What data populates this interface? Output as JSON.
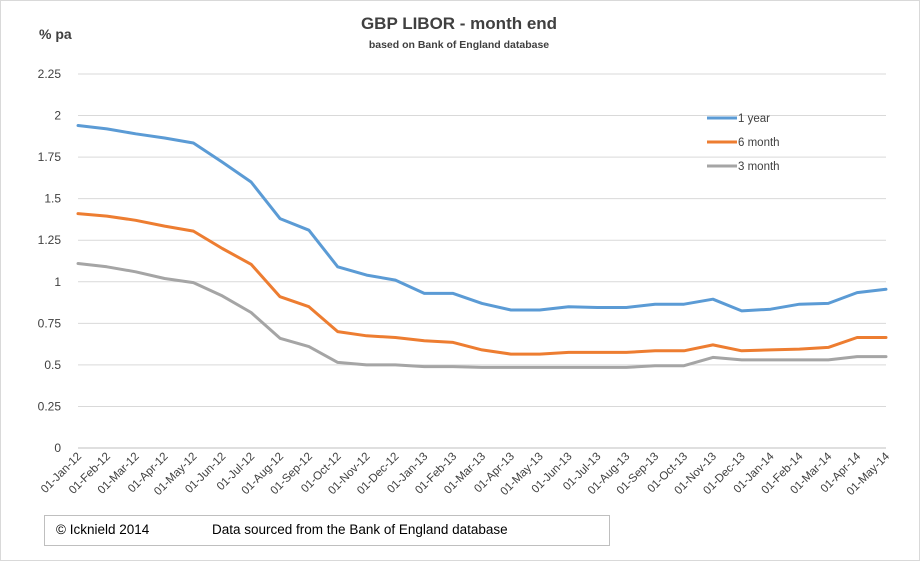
{
  "chart_data": {
    "type": "line",
    "title": "GBP LIBOR - month end",
    "subtitle": "based on Bank of England database",
    "ylabel": "% pa",
    "xlabel": "",
    "ylim": [
      0,
      2.25
    ],
    "yticks": [
      {
        "value": 0,
        "label": "0"
      },
      {
        "value": 0.25,
        "label": "0.25"
      },
      {
        "value": 0.5,
        "label": "0.5"
      },
      {
        "value": 0.75,
        "label": "0.75"
      },
      {
        "value": 1,
        "label": "1"
      },
      {
        "value": 1.25,
        "label": "1.25"
      },
      {
        "value": 1.5,
        "label": "1.5"
      },
      {
        "value": 1.75,
        "label": "1.75"
      },
      {
        "value": 2,
        "label": "2"
      },
      {
        "value": 2.25,
        "label": "2.25"
      }
    ],
    "grid": true,
    "legend_position": "top-right",
    "categories": [
      "01-Jan-12",
      "01-Feb-12",
      "01-Mar-12",
      "01-Apr-12",
      "01-May-12",
      "01-Jun-12",
      "01-Jul-12",
      "01-Aug-12",
      "01-Sep-12",
      "01-Oct-12",
      "01-Nov-12",
      "01-Dec-12",
      "01-Jan-13",
      "01-Feb-13",
      "01-Mar-13",
      "01-Apr-13",
      "01-May-13",
      "01-Jun-13",
      "01-Jul-13",
      "01-Aug-13",
      "01-Sep-13",
      "01-Oct-13",
      "01-Nov-13",
      "01-Dec-13",
      "01-Jan-14",
      "01-Feb-14",
      "01-Mar-14",
      "01-Apr-14",
      "01-May-14"
    ],
    "series": [
      {
        "name": "1 year",
        "color": "#5b9bd5",
        "values": [
          1.94,
          1.92,
          1.89,
          1.865,
          1.835,
          1.72,
          1.6,
          1.38,
          1.31,
          1.09,
          1.04,
          1.01,
          0.93,
          0.93,
          0.87,
          0.83,
          0.83,
          0.85,
          0.845,
          0.845,
          0.865,
          0.865,
          0.895,
          0.825,
          0.835,
          0.865,
          0.87,
          0.935,
          0.955
        ]
      },
      {
        "name": "6 month",
        "color": "#ed7d31",
        "values": [
          1.41,
          1.395,
          1.37,
          1.335,
          1.305,
          1.2,
          1.105,
          0.91,
          0.85,
          0.7,
          0.675,
          0.665,
          0.645,
          0.635,
          0.59,
          0.565,
          0.565,
          0.575,
          0.575,
          0.575,
          0.585,
          0.585,
          0.62,
          0.585,
          0.59,
          0.595,
          0.605,
          0.665,
          0.665
        ]
      },
      {
        "name": "3 month",
        "color": "#a5a5a5",
        "values": [
          1.11,
          1.09,
          1.06,
          1.02,
          0.995,
          0.915,
          0.815,
          0.66,
          0.61,
          0.515,
          0.5,
          0.5,
          0.49,
          0.49,
          0.485,
          0.485,
          0.485,
          0.485,
          0.485,
          0.485,
          0.495,
          0.495,
          0.545,
          0.53,
          0.53,
          0.53,
          0.53,
          0.55,
          0.55
        ]
      }
    ]
  },
  "footer": {
    "copyright": "© Icknield 2014",
    "source": "Data sourced from the Bank of England database"
  }
}
